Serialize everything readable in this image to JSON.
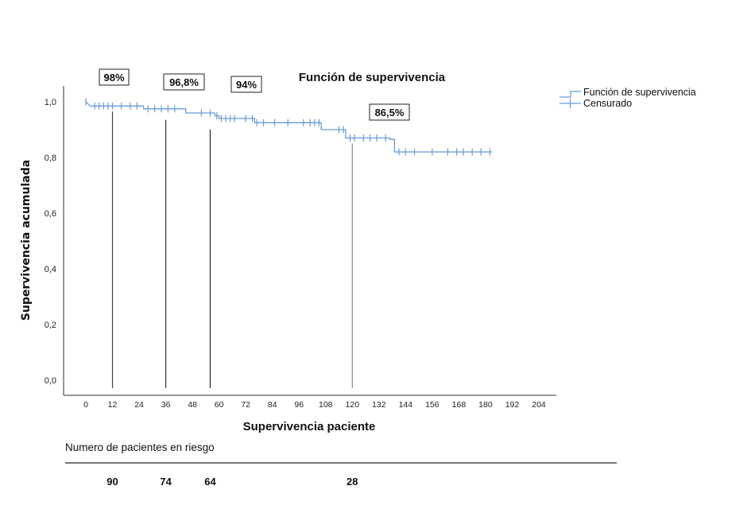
{
  "chart_data": {
    "type": "line",
    "title": "Función de supervivencia",
    "xlabel": "Supervivencia paciente",
    "ylabel": "Supervivencia acumulada",
    "xlim": [
      -6,
      210
    ],
    "ylim": [
      0,
      1.05
    ],
    "x_ticks": [
      0,
      12,
      24,
      36,
      48,
      60,
      72,
      84,
      96,
      108,
      120,
      132,
      144,
      156,
      168,
      180,
      192,
      204
    ],
    "y_ticks": [
      0.0,
      0.2,
      0.4,
      0.6,
      0.8,
      1.0
    ],
    "x_tick_labels": [
      "0",
      "12",
      "24",
      "36",
      "48",
      "60",
      "72",
      "84",
      "96",
      "108",
      "120",
      "132",
      "144",
      "156",
      "168",
      "180",
      "192",
      "204"
    ],
    "y_tick_labels": [
      "0,0",
      "0,2",
      "0,4",
      "0,6",
      "0,8",
      "1,0"
    ],
    "grid": false,
    "legend_position": "top-right",
    "series": [
      {
        "name": "Función de supervivencia",
        "color": "#6a9bd8",
        "step_points": [
          [
            0,
            1.0
          ],
          [
            2,
            0.985
          ],
          [
            26,
            0.985
          ],
          [
            26,
            0.975
          ],
          [
            45,
            0.975
          ],
          [
            45,
            0.96
          ],
          [
            58,
            0.96
          ],
          [
            58,
            0.95
          ],
          [
            60,
            0.95
          ],
          [
            60,
            0.94
          ],
          [
            70,
            0.94
          ],
          [
            70,
            0.94
          ],
          [
            76,
            0.94
          ],
          [
            76,
            0.925
          ],
          [
            106,
            0.925
          ],
          [
            106,
            0.9
          ],
          [
            117,
            0.9
          ],
          [
            117,
            0.87
          ],
          [
            137,
            0.87
          ],
          [
            137,
            0.865
          ],
          [
            139,
            0.865
          ],
          [
            139,
            0.82
          ],
          [
            183,
            0.82
          ]
        ]
      },
      {
        "name": "Censurado",
        "color": "#6a9bd8",
        "censored_points": [
          [
            0,
            1.0
          ],
          [
            4,
            0.985
          ],
          [
            6,
            0.985
          ],
          [
            8,
            0.985
          ],
          [
            10,
            0.985
          ],
          [
            12,
            0.985
          ],
          [
            16,
            0.985
          ],
          [
            20,
            0.985
          ],
          [
            23,
            0.985
          ],
          [
            28,
            0.975
          ],
          [
            31,
            0.975
          ],
          [
            34,
            0.975
          ],
          [
            37,
            0.975
          ],
          [
            40,
            0.975
          ],
          [
            52,
            0.96
          ],
          [
            56,
            0.96
          ],
          [
            59,
            0.95
          ],
          [
            61,
            0.94
          ],
          [
            63,
            0.94
          ],
          [
            65,
            0.94
          ],
          [
            67,
            0.94
          ],
          [
            72,
            0.94
          ],
          [
            75,
            0.94
          ],
          [
            77,
            0.925
          ],
          [
            80,
            0.925
          ],
          [
            85,
            0.925
          ],
          [
            91,
            0.925
          ],
          [
            98,
            0.925
          ],
          [
            101,
            0.925
          ],
          [
            103,
            0.925
          ],
          [
            105,
            0.925
          ],
          [
            114,
            0.9
          ],
          [
            116,
            0.9
          ],
          [
            119,
            0.87
          ],
          [
            121,
            0.87
          ],
          [
            125,
            0.87
          ],
          [
            128,
            0.87
          ],
          [
            131,
            0.87
          ],
          [
            135,
            0.87
          ],
          [
            141,
            0.82
          ],
          [
            144,
            0.82
          ],
          [
            148,
            0.82
          ],
          [
            156,
            0.82
          ],
          [
            163,
            0.82
          ],
          [
            167,
            0.82
          ],
          [
            170,
            0.82
          ],
          [
            174,
            0.82
          ],
          [
            178,
            0.82
          ],
          [
            182,
            0.82
          ]
        ]
      }
    ],
    "vertical_markers": [
      {
        "x": 12,
        "y_top": 0.965,
        "color": "#444444"
      },
      {
        "x": 36,
        "y_top": 0.935,
        "color": "#333333"
      },
      {
        "x": 56,
        "y_top": 0.9,
        "color": "#222222"
      },
      {
        "x": 120,
        "y_top": 0.85,
        "color": "#8a8a8a"
      }
    ],
    "annotations": [
      {
        "text": "98%"
      },
      {
        "text": "96,8%"
      },
      {
        "text": "94%"
      },
      {
        "text": "86,5%"
      }
    ],
    "risk_table": {
      "title": "Numero de pacientes en riesgo",
      "values": [
        {
          "x": 12,
          "label": "90"
        },
        {
          "x": 36,
          "label": "74"
        },
        {
          "x": 56,
          "label": "64"
        },
        {
          "x": 120,
          "label": "28"
        }
      ]
    }
  }
}
